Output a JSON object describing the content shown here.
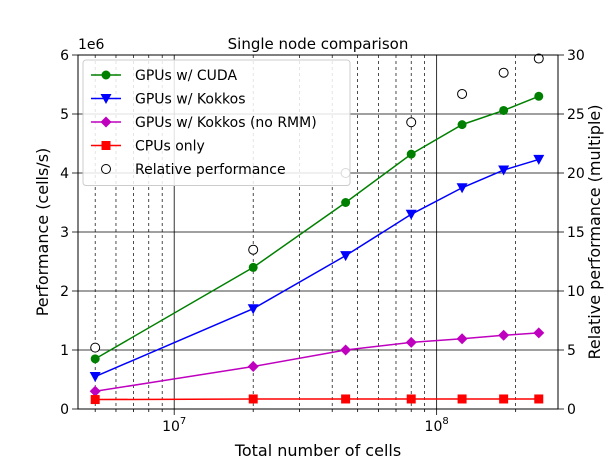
{
  "chart_data": {
    "type": "line",
    "title": "Single node comparison",
    "xlabel": "Total number of cells",
    "ylabel": "Performance (cells/s)",
    "y2label": "Relative performance (multiple)",
    "xscale": "log",
    "xlim": [
      4300000,
      290000000
    ],
    "ylim": [
      0,
      6000000
    ],
    "y2lim": [
      0,
      30
    ],
    "y_offset_label": "1e6",
    "x_tick_labels": [
      {
        "value": 10000000,
        "base": "10",
        "exp": "7"
      },
      {
        "value": 100000000,
        "base": "10",
        "exp": "8"
      }
    ],
    "y_ticks": [
      0,
      1000000,
      2000000,
      3000000,
      4000000,
      5000000,
      6000000
    ],
    "y_tick_labels": [
      "0",
      "1",
      "2",
      "3",
      "4",
      "5",
      "6"
    ],
    "y2_ticks": [
      0,
      5,
      10,
      15,
      20,
      25,
      30
    ],
    "y2_tick_labels": [
      "0",
      "5",
      "10",
      "15",
      "20",
      "25",
      "30"
    ],
    "grid": "vertical log grid (major and minor), horizontal grid on left axis",
    "legend_position": "top-left",
    "x": [
      5000000,
      20000000,
      45000000,
      80000000,
      125000000,
      180000000,
      245000000
    ],
    "series": [
      {
        "name": "GPUs w/ CUDA",
        "color": "#008000",
        "marker": "circle",
        "axis": "left",
        "values": [
          850000,
          2400000,
          3500000,
          4320000,
          4820000,
          5060000,
          5300000
        ]
      },
      {
        "name": "GPUs w/ Kokkos",
        "color": "#0000ff",
        "marker": "triangle-down",
        "axis": "left",
        "values": [
          550000,
          1700000,
          2600000,
          3300000,
          3750000,
          4050000,
          4230000
        ]
      },
      {
        "name": "GPUs w/ Kokkos (no RMM)",
        "color": "#bf00bf",
        "marker": "diamond",
        "axis": "left",
        "values": [
          300000,
          720000,
          1000000,
          1130000,
          1190000,
          1250000,
          1290000
        ]
      },
      {
        "name": "CPUs only",
        "color": "#ff0000",
        "marker": "square",
        "axis": "left",
        "values": [
          160000,
          170000,
          170000,
          170000,
          170000,
          170000,
          170000
        ]
      },
      {
        "name": "Relative performance",
        "color": "#000000",
        "marker": "open-circle",
        "axis": "right",
        "values": [
          5.2,
          13.5,
          20.0,
          24.3,
          26.7,
          28.5,
          29.7
        ]
      }
    ]
  }
}
